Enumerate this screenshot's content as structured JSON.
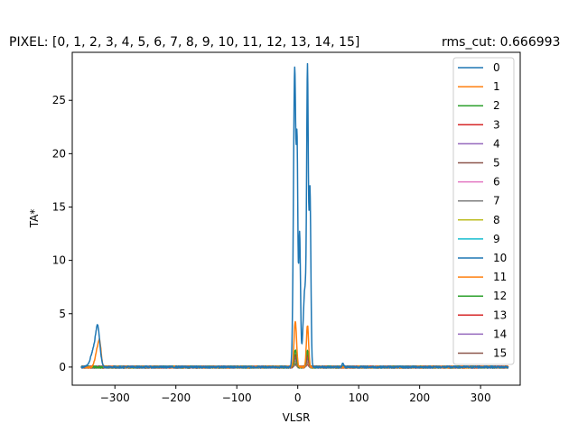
{
  "chart_data": {
    "type": "line",
    "title": "PIXEL: [0, 1, 2, 3, 4, 5, 6, 7, 8, 9, 10, 11, 12, 13, 14, 15]",
    "subtitle": "rms_cut: 0.666993",
    "xlabel": "VLSR",
    "ylabel": "TA*",
    "xlim": [
      -370,
      365
    ],
    "ylim": [
      -1.7,
      29.5
    ],
    "x_ticks": [
      -300,
      -200,
      -100,
      0,
      100,
      200,
      300
    ],
    "y_ticks": [
      0,
      5,
      10,
      15,
      20,
      25
    ],
    "grid": false,
    "legend_position": "top-right",
    "x_range_data": [
      -355,
      345
    ],
    "series": [
      {
        "name": "0",
        "color": "#1f77b4",
        "peaks": [
          [
            -335,
            1.5,
            5
          ],
          [
            -328,
            3.3,
            3.5
          ],
          [
            -5,
            28.0,
            2
          ],
          [
            -1,
            17.5,
            1.2
          ],
          [
            3,
            12.5,
            1.5
          ],
          [
            16,
            24.8,
            1.3
          ],
          [
            20,
            16.5,
            1.5
          ],
          [
            12,
            7.5,
            3
          ],
          [
            74,
            0.3,
            1.5
          ]
        ]
      },
      {
        "name": "1",
        "color": "#ff7f0e",
        "peaks": [
          [
            -330,
            1.3,
            3
          ],
          [
            -325,
            2.2,
            2.5
          ],
          [
            -4,
            4.3,
            2
          ],
          [
            16,
            3.9,
            1.8
          ]
        ]
      },
      {
        "name": "2",
        "color": "#2ca02c",
        "peaks": [
          [
            -4,
            1.6,
            2
          ],
          [
            16,
            1.5,
            2
          ]
        ]
      },
      {
        "name": "3",
        "color": "#d62728",
        "peaks": [
          [
            -4,
            1.2,
            2
          ],
          [
            16,
            1.1,
            2
          ]
        ]
      },
      {
        "name": "4",
        "color": "#9467bd",
        "peaks": [
          [
            -4,
            1.1,
            2
          ],
          [
            16,
            1.0,
            2
          ]
        ]
      },
      {
        "name": "5",
        "color": "#8c564b",
        "peaks": [
          [
            -4,
            0.9,
            2
          ],
          [
            16,
            0.8,
            2
          ]
        ]
      },
      {
        "name": "6",
        "color": "#e377c2",
        "peaks": [
          [
            -4,
            0.8,
            2
          ],
          [
            16,
            0.7,
            2
          ]
        ]
      },
      {
        "name": "7",
        "color": "#7f7f7f",
        "peaks": [
          [
            -4,
            0.7,
            2
          ],
          [
            16,
            0.6,
            2
          ]
        ]
      },
      {
        "name": "8",
        "color": "#bcbd22",
        "peaks": [
          [
            -4,
            0.6,
            2
          ],
          [
            16,
            0.6,
            2
          ]
        ]
      },
      {
        "name": "9",
        "color": "#17becf",
        "peaks": [
          [
            -4,
            0.6,
            2
          ],
          [
            16,
            0.5,
            2
          ]
        ]
      },
      {
        "name": "10",
        "color": "#1f77b4",
        "peaks": [
          [
            -4,
            0.5,
            2
          ],
          [
            16,
            0.5,
            2
          ]
        ]
      },
      {
        "name": "11",
        "color": "#ff7f0e",
        "peaks": [
          [
            -4,
            0.5,
            2
          ],
          [
            16,
            0.4,
            2
          ]
        ]
      },
      {
        "name": "12",
        "color": "#2ca02c",
        "peaks": [
          [
            -4,
            0.4,
            2
          ],
          [
            16,
            0.4,
            2
          ]
        ]
      },
      {
        "name": "13",
        "color": "#d62728",
        "peaks": [
          [
            -4,
            0.4,
            2
          ],
          [
            16,
            0.3,
            2
          ]
        ]
      },
      {
        "name": "14",
        "color": "#9467bd",
        "peaks": [
          [
            -4,
            0.3,
            2
          ],
          [
            16,
            0.3,
            2
          ]
        ]
      },
      {
        "name": "15",
        "color": "#8c564b",
        "peaks": [
          [
            -4,
            0.3,
            2
          ],
          [
            16,
            0.3,
            2
          ]
        ]
      }
    ]
  }
}
